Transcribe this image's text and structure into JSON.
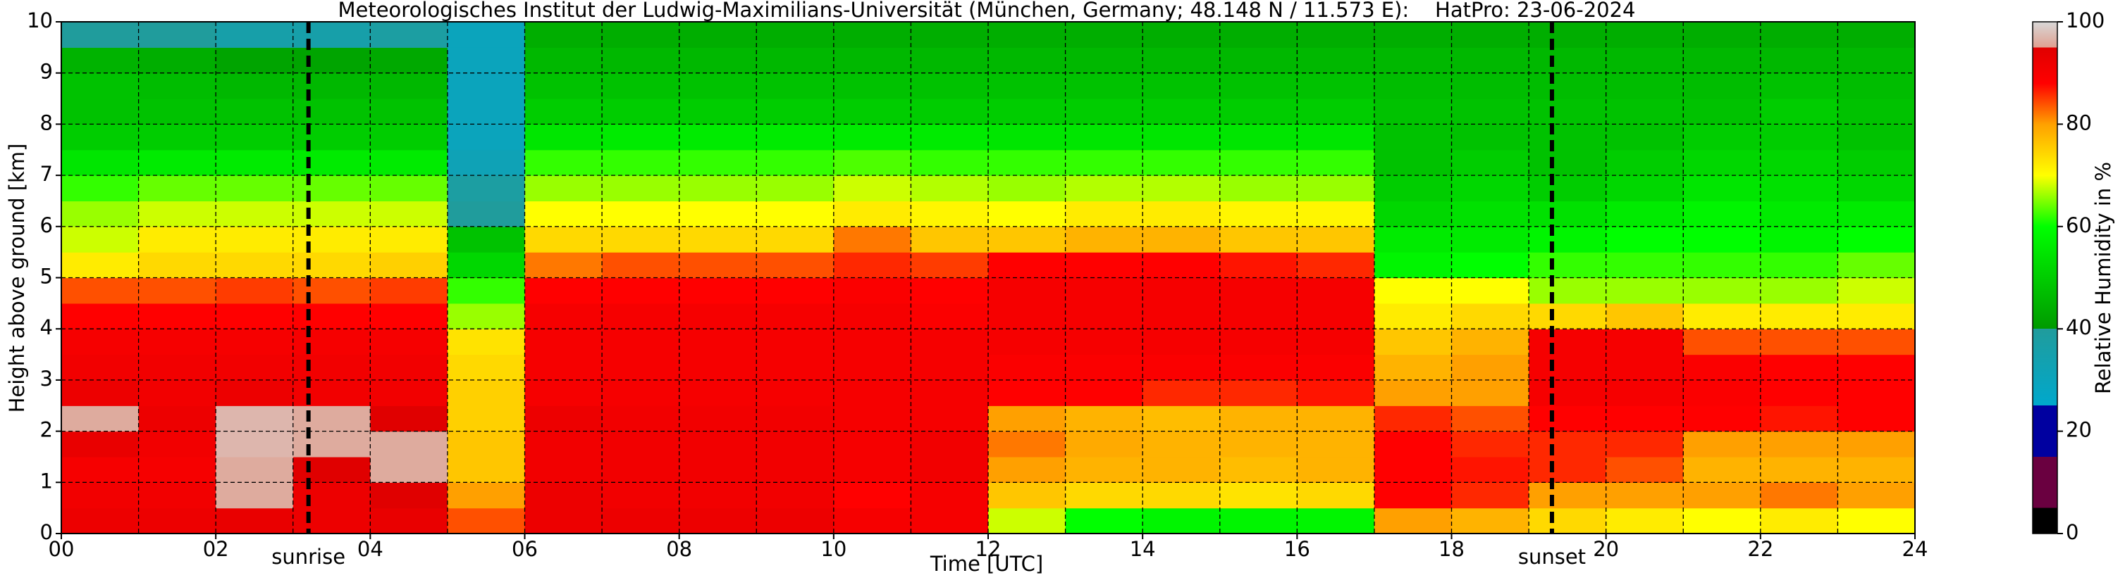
{
  "chart_data": {
    "type": "heatmap",
    "title": "Meteorologisches Institut der Ludwig-Maximilians-Universität (München, Germany; 48.148 N / 11.573 E):    HatPro: 23-06-2024",
    "xlabel": "Time [UTC]",
    "ylabel": "Height above ground [km]",
    "colorbar_label": "Relative Humidity in %",
    "x": [
      0.5,
      1.5,
      2.5,
      3.5,
      4.5,
      5.5,
      6.5,
      7.5,
      8.5,
      9.5,
      10.5,
      11.5,
      12.5,
      13.5,
      14.5,
      15.5,
      16.5,
      17.5,
      18.5,
      19.5,
      20.5,
      21.5,
      22.5,
      23.5
    ],
    "y": [
      0.25,
      0.75,
      1.25,
      1.75,
      2.25,
      2.75,
      3.25,
      3.75,
      4.25,
      4.75,
      5.25,
      5.75,
      6.25,
      6.75,
      7.25,
      7.75,
      8.25,
      8.75,
      9.25,
      9.75
    ],
    "z": [
      [
        92,
        91,
        90,
        93,
        96,
        92,
        91,
        90,
        88,
        84,
        72,
        68,
        66,
        62,
        55,
        50,
        48,
        48,
        45,
        40
      ],
      [
        92,
        91,
        90,
        91,
        92,
        91,
        91,
        90,
        88,
        84,
        74,
        72,
        68,
        64,
        56,
        50,
        48,
        47,
        44,
        40
      ],
      [
        93,
        96,
        96,
        97,
        97,
        92,
        91,
        90,
        88,
        85,
        74,
        72,
        68,
        64,
        56,
        50,
        48,
        46,
        42,
        36
      ],
      [
        92,
        92,
        95,
        96,
        96,
        91,
        91,
        90,
        88,
        84,
        74,
        72,
        68,
        64,
        56,
        50,
        48,
        46,
        42,
        36
      ],
      [
        93,
        95,
        96,
        96,
        95,
        91,
        91,
        90,
        88,
        85,
        75,
        72,
        68,
        64,
        56,
        50,
        48,
        46,
        43,
        38
      ],
      [
        84,
        80,
        76,
        76,
        75,
        75,
        74,
        73,
        66,
        62,
        52,
        48,
        40,
        38,
        32,
        30,
        30,
        30,
        30,
        30
      ],
      [
        92,
        92,
        91,
        91,
        92,
        90,
        90,
        90,
        90,
        88,
        82,
        74,
        70,
        66,
        62,
        55,
        50,
        48,
        46,
        44
      ],
      [
        92,
        91,
        91,
        91,
        91,
        90,
        90,
        90,
        90,
        88,
        84,
        74,
        70,
        66,
        62,
        56,
        50,
        48,
        46,
        44
      ],
      [
        92,
        91,
        91,
        91,
        91,
        90,
        90,
        90,
        90,
        88,
        84,
        74,
        70,
        66,
        62,
        56,
        50,
        48,
        46,
        44
      ],
      [
        92,
        91,
        91,
        91,
        91,
        90,
        90,
        90,
        90,
        88,
        84,
        74,
        70,
        66,
        62,
        56,
        50,
        48,
        46,
        44
      ],
      [
        90,
        88,
        90,
        90,
        90,
        90,
        90,
        90,
        90,
        89,
        86,
        82,
        72,
        68,
        63,
        56,
        50,
        48,
        46,
        44
      ],
      [
        90,
        90,
        91,
        91,
        90,
        90,
        90,
        90,
        89,
        88,
        85,
        76,
        71,
        67,
        62,
        56,
        50,
        48,
        46,
        44
      ],
      [
        68,
        76,
        80,
        82,
        80,
        88,
        89,
        90,
        90,
        90,
        88,
        76,
        70,
        66,
        62,
        55,
        50,
        48,
        46,
        44
      ],
      [
        60,
        74,
        78,
        79,
        78,
        88,
        89,
        90,
        90,
        90,
        88,
        78,
        72,
        67,
        62,
        55,
        50,
        48,
        46,
        44
      ],
      [
        58,
        74,
        78,
        78,
        77,
        86,
        89,
        90,
        90,
        90,
        88,
        78,
        72,
        67,
        62,
        55,
        50,
        48,
        46,
        44
      ],
      [
        58,
        73,
        77,
        78,
        78,
        86,
        89,
        90,
        90,
        90,
        87,
        76,
        71,
        66,
        62,
        55,
        50,
        48,
        46,
        44
      ],
      [
        58,
        74,
        78,
        78,
        78,
        87,
        89,
        90,
        90,
        90,
        86,
        76,
        71,
        66,
        62,
        55,
        50,
        48,
        46,
        44
      ],
      [
        80,
        88,
        88,
        88,
        86,
        80,
        78,
        76,
        72,
        70,
        58,
        56,
        52,
        50,
        48,
        48,
        48,
        47,
        46,
        44
      ],
      [
        78,
        86,
        87,
        86,
        84,
        80,
        80,
        78,
        74,
        70,
        60,
        56,
        54,
        52,
        50,
        48,
        48,
        47,
        46,
        44
      ],
      [
        74,
        80,
        86,
        86,
        88,
        90,
        90,
        90,
        74,
        66,
        62,
        58,
        54,
        50,
        48,
        48,
        48,
        47,
        46,
        44
      ],
      [
        72,
        80,
        84,
        86,
        88,
        90,
        90,
        90,
        76,
        66,
        62,
        60,
        56,
        52,
        50,
        48,
        48,
        47,
        46,
        44
      ],
      [
        70,
        80,
        78,
        80,
        88,
        89,
        89,
        84,
        72,
        66,
        62,
        60,
        58,
        55,
        52,
        50,
        48,
        47,
        46,
        44
      ],
      [
        72,
        82,
        78,
        80,
        87,
        88,
        88,
        84,
        72,
        66,
        62,
        58,
        56,
        54,
        52,
        50,
        50,
        48,
        46,
        44
      ],
      [
        70,
        80,
        78,
        80,
        88,
        88,
        88,
        84,
        72,
        68,
        64,
        60,
        56,
        52,
        50,
        48,
        48,
        47,
        46,
        44
      ]
    ],
    "xlim": [
      0,
      24
    ],
    "ylim": [
      0,
      10
    ],
    "clim": [
      0,
      100
    ],
    "xticks": [
      {
        "value": 0,
        "label": "00"
      },
      {
        "value": 2,
        "label": "02"
      },
      {
        "value": 4,
        "label": "04"
      },
      {
        "value": 6,
        "label": "06"
      },
      {
        "value": 8,
        "label": "08"
      },
      {
        "value": 10,
        "label": "10"
      },
      {
        "value": 12,
        "label": "12"
      },
      {
        "value": 14,
        "label": "14"
      },
      {
        "value": 16,
        "label": "16"
      },
      {
        "value": 18,
        "label": "18"
      },
      {
        "value": 20,
        "label": "20"
      },
      {
        "value": 22,
        "label": "22"
      },
      {
        "value": 24,
        "label": "24"
      }
    ],
    "xminorgrid": [
      1,
      3,
      5,
      7,
      9,
      11,
      13,
      15,
      17,
      19,
      21,
      23
    ],
    "yticks": [
      0,
      1,
      2,
      3,
      4,
      5,
      6,
      7,
      8,
      9,
      10
    ],
    "cticks": [
      0,
      20,
      40,
      60,
      80,
      100
    ],
    "grid": true,
    "annotations": [
      {
        "text": "sunrise",
        "x": 3.2
      },
      {
        "text": "sunset",
        "x": 19.3
      }
    ]
  }
}
